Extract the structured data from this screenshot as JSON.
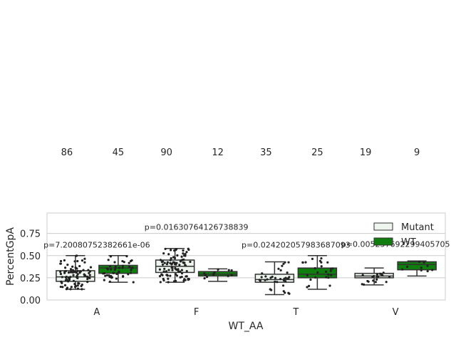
{
  "chart_data": {
    "type": "box",
    "xlabel": "WT_AA",
    "ylabel": "PercentGpA",
    "ylim": [
      0,
      0.98
    ],
    "yticks": [
      0.0,
      0.25,
      0.5,
      0.75
    ],
    "ytick_labels": [
      "0.00",
      "0.25",
      "0.50",
      "0.75"
    ],
    "grid": true,
    "legend_position": "top-right",
    "categories": [
      "A",
      "F",
      "T",
      "V"
    ],
    "series": [
      {
        "name": "Mutant",
        "color": "#eef5ee",
        "counts": [
          86,
          90,
          35,
          19
        ],
        "boxes": [
          {
            "whislo": 0.12,
            "q1": 0.21,
            "med": 0.26,
            "q3": 0.33,
            "whishi": 0.5
          },
          {
            "whislo": 0.2,
            "q1": 0.31,
            "med": 0.38,
            "q3": 0.45,
            "whishi": 0.58
          },
          {
            "whislo": 0.06,
            "q1": 0.2,
            "med": 0.23,
            "q3": 0.29,
            "whishi": 0.43
          },
          {
            "whislo": 0.17,
            "q1": 0.25,
            "med": 0.27,
            "q3": 0.3,
            "whishi": 0.36
          }
        ]
      },
      {
        "name": "WT",
        "color": "#107e0e",
        "counts": [
          45,
          12,
          25,
          9
        ],
        "boxes": [
          {
            "whislo": 0.2,
            "q1": 0.3,
            "med": 0.36,
            "q3": 0.39,
            "whishi": 0.5
          },
          {
            "whislo": 0.21,
            "q1": 0.27,
            "med": 0.29,
            "q3": 0.32,
            "whishi": 0.35
          },
          {
            "whislo": 0.12,
            "q1": 0.25,
            "med": 0.29,
            "q3": 0.36,
            "whishi": 0.5
          },
          {
            "whislo": 0.27,
            "q1": 0.34,
            "med": 0.4,
            "q3": 0.43,
            "whishi": 0.44
          }
        ]
      }
    ],
    "pvalues": [
      {
        "category": "A",
        "text": "p=7.20080752382661e-06",
        "y": 0.59
      },
      {
        "category": "F",
        "text": "p=0.01630764126738839",
        "y": 0.79
      },
      {
        "category": "T",
        "text": "p=0.024202057983687093",
        "y": 0.59
      },
      {
        "category": "V",
        "text": "p=0.005257692299405705",
        "y": 0.6
      }
    ]
  }
}
